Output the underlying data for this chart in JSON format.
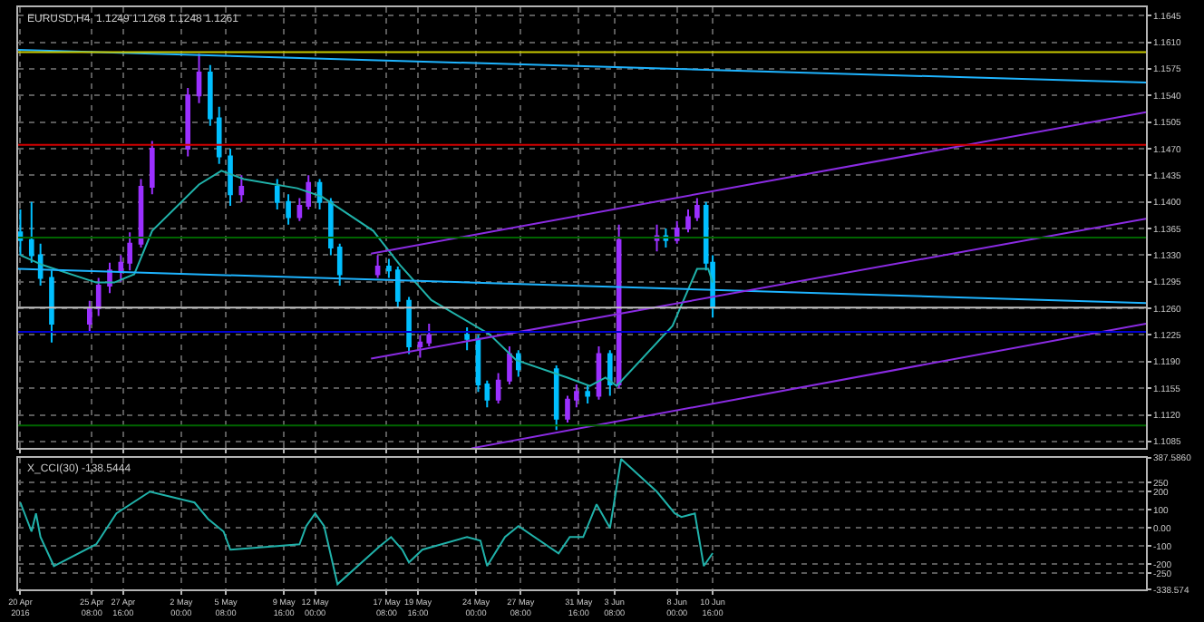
{
  "chart_data": [
    {
      "type": "candlestick",
      "title": "EURUSD,H4  1.1249 1.1268 1.1248 1.1261",
      "grid": true,
      "tick_labels": "y",
      "xlim": [
        "2016-04-19T20:00",
        "2016-07-13T00:00"
      ],
      "xticks": [
        {
          "value": "2016-04-20T00:00",
          "label": null
        },
        {
          "value": "2016-04-25T08:00",
          "label": null
        },
        {
          "value": "2016-04-27T16:00",
          "label": null
        },
        {
          "value": "2016-05-02T00:00",
          "label": null
        },
        {
          "value": "2016-05-05T08:00",
          "label": null
        },
        {
          "value": "2016-05-09T16:00",
          "label": null
        },
        {
          "value": "2016-05-12T00:00",
          "label": null
        },
        {
          "value": "2016-05-17T08:00",
          "label": null
        },
        {
          "value": "2016-05-19T16:00",
          "label": null
        },
        {
          "value": "2016-05-24T00:00",
          "label": null
        },
        {
          "value": "2016-05-27T08:00",
          "label": null
        },
        {
          "value": "2016-05-31T16:00",
          "label": null
        },
        {
          "value": "2016-06-03T08:00",
          "label": null
        },
        {
          "value": "2016-06-08T00:00",
          "label": null
        },
        {
          "value": "2016-06-10T16:00",
          "label": null
        }
      ],
      "ylim": [
        1.1076,
        1.1656
      ],
      "yticks": [
        1.1645,
        {
          "value": 1.161,
          "label": "1.1610"
        },
        1.1575,
        {
          "value": 1.154,
          "label": "1.1540"
        },
        1.1505,
        {
          "value": 1.147,
          "label": "1.1470"
        },
        1.1435,
        {
          "value": 1.14,
          "label": "1.1400"
        },
        1.1365,
        {
          "value": 1.133,
          "label": "1.1330"
        },
        1.1295,
        {
          "value": 1.126,
          "label": "1.1260"
        },
        1.1225,
        {
          "value": 1.119,
          "label": "1.1190"
        },
        1.1155,
        {
          "value": 1.112,
          "label": "1.1120"
        },
        1.1085
      ],
      "ref_lines": [
        {
          "axis": "y",
          "value": 1.1597,
          "color": "#c8c800"
        },
        {
          "axis": "y",
          "value": 1.1475,
          "color": "#d00000"
        },
        {
          "axis": "y",
          "value": 1.1353,
          "color": "#006400"
        },
        {
          "axis": "y",
          "value": 1.1261,
          "color": "#c0c0c0"
        },
        {
          "axis": "y",
          "value": 1.1229,
          "color": "#0000d0"
        },
        {
          "axis": "y",
          "value": 1.1106,
          "color": "#006400"
        }
      ],
      "series": [
        {
          "type": "candlestick",
          "color": "#9b30ff",
          "x": [
            "2016-04-25T04:00",
            "2016-04-25T20:00",
            "2016-04-26T16:00",
            "2016-04-27T12:00",
            "2016-04-28T04:00",
            "2016-04-29T00:00",
            "2016-04-29T20:00",
            "2016-05-02T12:00",
            "2016-05-03T08:00",
            "2016-05-06T12:00",
            "2016-05-10T20:00",
            "2016-05-11T12:00",
            "2016-05-16T16:00",
            "2016-05-19T20:00",
            "2016-05-20T12:00",
            "2016-05-25T16:00",
            "2016-05-26T12:00",
            "2016-05-30T20:00",
            "2016-05-31T12:00",
            "2016-06-02T04:00",
            "2016-06-03T16:00",
            "2016-06-06T12:00",
            "2016-06-08T00:00",
            "2016-06-08T20:00",
            "2016-06-09T12:00"
          ],
          "ohlc": [
            [
              1.124,
              1.127,
              1.123,
              1.126
            ],
            [
              1.126,
              1.13,
              1.125,
              1.129
            ],
            [
              1.129,
              1.132,
              1.128,
              1.131
            ],
            [
              1.131,
              1.133,
              1.1295,
              1.132
            ],
            [
              1.132,
              1.136,
              1.131,
              1.1345
            ],
            [
              1.1345,
              1.143,
              1.134,
              1.142
            ],
            [
              1.142,
              1.148,
              1.141,
              1.147
            ],
            [
              1.147,
              1.155,
              1.146,
              1.154
            ],
            [
              1.154,
              1.1595,
              1.153,
              1.157
            ],
            [
              1.141,
              1.1435,
              1.14,
              1.142
            ],
            [
              1.138,
              1.1405,
              1.1375,
              1.1395
            ],
            [
              1.1395,
              1.1435,
              1.139,
              1.1425
            ],
            [
              1.1305,
              1.133,
              1.13,
              1.1315
            ],
            [
              1.121,
              1.1225,
              1.1195,
              1.1215
            ],
            [
              1.1215,
              1.124,
              1.121,
              1.1225
            ],
            [
              1.114,
              1.1175,
              1.1135,
              1.1165
            ],
            [
              1.1165,
              1.121,
              1.116,
              1.12
            ],
            [
              1.1115,
              1.1145,
              1.111,
              1.114
            ],
            [
              1.114,
              1.116,
              1.113,
              1.115
            ],
            [
              1.1145,
              1.121,
              1.114,
              1.12
            ],
            [
              1.116,
              1.137,
              1.1155,
              1.135
            ],
            [
              1.135,
              1.137,
              1.1335,
              1.1355
            ],
            [
              1.135,
              1.1375,
              1.1345,
              1.1365
            ],
            [
              1.1365,
              1.139,
              1.136,
              1.138
            ],
            [
              1.138,
              1.1405,
              1.1375,
              1.1395
            ]
          ]
        },
        {
          "type": "candlestick",
          "color": "#00bfff",
          "x": [
            "2016-04-20T00:00",
            "2016-04-20T20:00",
            "2016-04-21T12:00",
            "2016-04-22T08:00",
            "2016-05-04T04:00",
            "2016-05-04T20:00",
            "2016-05-05T16:00",
            "2016-05-09T04:00",
            "2016-05-10T00:00",
            "2016-05-12T08:00",
            "2016-05-13T04:00",
            "2016-05-13T20:00",
            "2016-05-17T12:00",
            "2016-05-18T04:00",
            "2016-05-19T00:00",
            "2016-05-23T08:00",
            "2016-05-24T04:00",
            "2016-05-24T20:00",
            "2016-05-27T04:00",
            "2016-05-30T00:00",
            "2016-06-01T08:00",
            "2016-06-03T00:00",
            "2016-06-07T04:00",
            "2016-06-10T04:00",
            "2016-06-10T16:00"
          ],
          "ohlc": [
            [
              1.136,
              1.139,
              1.133,
              1.135
            ],
            [
              1.135,
              1.14,
              1.132,
              1.133
            ],
            [
              1.133,
              1.1345,
              1.129,
              1.13
            ],
            [
              1.13,
              1.131,
              1.1215,
              1.124
            ],
            [
              1.157,
              1.158,
              1.15,
              1.151
            ],
            [
              1.151,
              1.1525,
              1.145,
              1.146
            ],
            [
              1.146,
              1.147,
              1.1395,
              1.141
            ],
            [
              1.142,
              1.143,
              1.139,
              1.14
            ],
            [
              1.14,
              1.141,
              1.137,
              1.138
            ],
            [
              1.1425,
              1.143,
              1.139,
              1.14
            ],
            [
              1.14,
              1.1405,
              1.133,
              1.134
            ],
            [
              1.134,
              1.1345,
              1.129,
              1.1305
            ],
            [
              1.1315,
              1.1325,
              1.13,
              1.131
            ],
            [
              1.131,
              1.1315,
              1.126,
              1.127
            ],
            [
              1.127,
              1.1275,
              1.12,
              1.121
            ],
            [
              1.1225,
              1.1235,
              1.1205,
              1.122
            ],
            [
              1.122,
              1.1225,
              1.115,
              1.116
            ],
            [
              1.116,
              1.1165,
              1.113,
              1.114
            ],
            [
              1.12,
              1.1205,
              1.117,
              1.118
            ],
            [
              1.118,
              1.1185,
              1.11,
              1.1115
            ],
            [
              1.115,
              1.116,
              1.1135,
              1.1145
            ],
            [
              1.12,
              1.1205,
              1.1145,
              1.116
            ],
            [
              1.1355,
              1.1365,
              1.134,
              1.135
            ],
            [
              1.1395,
              1.14,
              1.131,
              1.132
            ],
            [
              1.132,
              1.133,
              1.1248,
              1.1261
            ]
          ]
        },
        {
          "type": "line",
          "color": "#20b2aa",
          "x": [
            "2016-04-20T00:00",
            "2016-04-21T16:00",
            "2016-04-25T16:00",
            "2016-04-27T00:00",
            "2016-04-28T12:00",
            "2016-04-29T20:00",
            "2016-05-03T08:00",
            "2016-05-05T00:00",
            "2016-05-06T16:00",
            "2016-05-10T16:00",
            "2016-05-12T12:00",
            "2016-05-16T08:00",
            "2016-05-18T08:00",
            "2016-05-20T16:00",
            "2016-05-25T00:00",
            "2016-05-27T00:00",
            "2016-05-30T20:00",
            "2016-06-01T12:00",
            "2016-06-02T16:00",
            "2016-06-03T12:00",
            "2016-06-07T16:00",
            "2016-06-09T12:00",
            "2016-06-10T08:00",
            "2016-06-10T16:00"
          ],
          "values": [
            1.133,
            1.1317,
            1.1294,
            1.1294,
            1.1305,
            1.1362,
            1.1423,
            1.1441,
            1.143,
            1.1418,
            1.1407,
            1.1362,
            1.1317,
            1.1271,
            1.1226,
            1.1192,
            1.1169,
            1.1158,
            1.1169,
            1.1158,
            1.1237,
            1.1312,
            1.1312,
            1.1294
          ]
        },
        {
          "type": "line",
          "color": "#1eb4ff",
          "x": [
            "2016-04-19T20:00",
            "2016-07-13T00:00"
          ],
          "values": [
            1.16,
            1.1557
          ]
        },
        {
          "type": "line",
          "color": "#1eb4ff",
          "x": [
            "2016-04-19T20:00",
            "2016-07-13T00:00"
          ],
          "values": [
            1.1312,
            1.1267
          ]
        },
        {
          "type": "line",
          "color": "#8a2be2",
          "x": [
            "2016-05-16T04:00",
            "2016-07-13T00:00"
          ],
          "values": [
            1.1332,
            1.1518
          ]
        },
        {
          "type": "line",
          "color": "#8a2be2",
          "x": [
            "2016-05-16T04:00",
            "2016-07-13T00:00"
          ],
          "values": [
            1.1194,
            1.1378
          ]
        },
        {
          "type": "line",
          "color": "#8a2be2",
          "x": [
            "2016-05-23T16:00",
            "2016-07-13T00:00"
          ],
          "values": [
            1.1076,
            1.124
          ]
        }
      ]
    },
    {
      "type": "line",
      "title": "X_CCI(30) -138.5444",
      "grid": true,
      "xlim": [
        "2016-04-19T20:00",
        "2016-07-13T00:00"
      ],
      "xticks": [
        {
          "value": "2016-04-20T00:00",
          "label": "20 Apr 2016"
        },
        {
          "value": "2016-04-25T08:00",
          "label": "25 Apr 08:00"
        },
        {
          "value": "2016-04-27T16:00",
          "label": "27 Apr 16:00"
        },
        {
          "value": "2016-05-02T00:00",
          "label": "2 May 00:00"
        },
        {
          "value": "2016-05-05T08:00",
          "label": "5 May 08:00"
        },
        {
          "value": "2016-05-09T16:00",
          "label": "9 May 16:00"
        },
        {
          "value": "2016-05-12T00:00",
          "label": "12 May 00:00"
        },
        {
          "value": "2016-05-17T08:00",
          "label": "17 May 08:00"
        },
        {
          "value": "2016-05-19T16:00",
          "label": "19 May 16:00"
        },
        {
          "value": "2016-05-24T00:00",
          "label": "24 May 00:00"
        },
        {
          "value": "2016-05-27T08:00",
          "label": "27 May 08:00"
        },
        {
          "value": "2016-05-31T16:00",
          "label": "31 May 16:00"
        },
        {
          "value": "2016-06-03T08:00",
          "label": "3 Jun 08:00"
        },
        {
          "value": "2016-06-08T00:00",
          "label": "8 Jun 00:00"
        },
        {
          "value": "2016-06-10T16:00",
          "label": "10 Jun 16:00"
        }
      ],
      "ylim": [
        -338.574,
        387.586
      ],
      "yticks": [
        {
          "value": 387.586,
          "label": "387.5860"
        },
        250,
        200,
        100,
        {
          "value": 0,
          "label": "0.00"
        },
        -100,
        -200,
        -250,
        -338.574
      ],
      "series": [
        {
          "color": "#20b2aa",
          "x": [
            "2016-04-20T00:00",
            "2016-04-20T20:00",
            "2016-04-21T04:00",
            "2016-04-21T12:00",
            "2016-04-22T12:00",
            "2016-04-25T16:00",
            "2016-04-27T04:00",
            "2016-04-29T16:00",
            "2016-05-03T00:00",
            "2016-05-04T00:00",
            "2016-05-05T04:00",
            "2016-05-05T16:00",
            "2016-05-09T04:00",
            "2016-05-10T20:00",
            "2016-05-11T08:00",
            "2016-05-12T00:00",
            "2016-05-12T16:00",
            "2016-05-13T16:00",
            "2016-05-16T20:00",
            "2016-05-17T16:00",
            "2016-05-18T12:00",
            "2016-05-19T00:00",
            "2016-05-20T00:00",
            "2016-05-23T08:00",
            "2016-05-24T08:00",
            "2016-05-24T20:00",
            "2016-05-26T04:00",
            "2016-05-27T04:00",
            "2016-05-30T04:00",
            "2016-05-31T00:00",
            "2016-06-01T00:00",
            "2016-06-02T00:00",
            "2016-06-03T00:00",
            "2016-06-03T20:00",
            "2016-06-06T12:00",
            "2016-06-07T20:00",
            "2016-06-08T08:00",
            "2016-06-09T08:00",
            "2016-06-10T00:00",
            "2016-06-10T16:00"
          ],
          "values": [
            140,
            -20,
            80,
            -50,
            -210,
            -90,
            80,
            200,
            140,
            50,
            -20,
            -120,
            -100,
            -90,
            10,
            80,
            10,
            -310,
            -100,
            -50,
            -120,
            -190,
            -120,
            -50,
            -70,
            -210,
            -50,
            10,
            -140,
            -50,
            -50,
            130,
            0,
            380,
            200,
            80,
            60,
            80,
            -210,
            -138.5444
          ]
        }
      ]
    }
  ]
}
